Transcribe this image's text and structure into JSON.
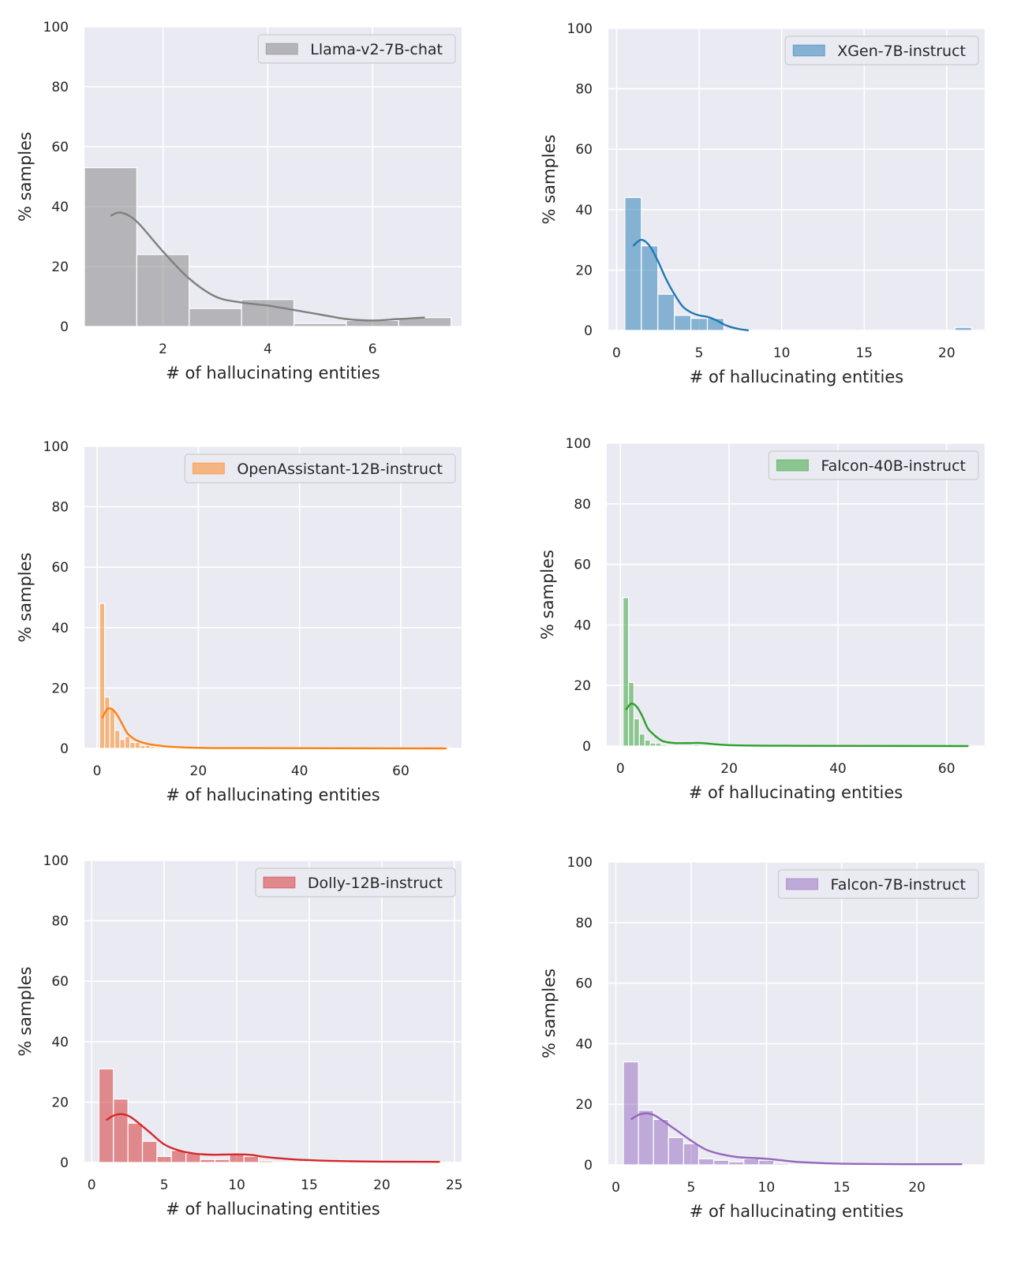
{
  "style": {
    "panel_bg": "#EAEAF2",
    "grid_color": "#FFFFFF",
    "text_color": "#262626"
  },
  "chart_data": [
    {
      "type": "bar",
      "subtype": "histogram_with_kde",
      "legend": "Llama-v2-7B-chat",
      "legend_position": "top-right",
      "color": "#7F7F7F",
      "xlabel": "# of hallucinating entities",
      "ylabel": "% samples",
      "xlim": [
        0.5,
        7.7
      ],
      "ylim": [
        0,
        100
      ],
      "xticks": [
        2,
        4,
        6
      ],
      "yticks": [
        0,
        20,
        40,
        60,
        80,
        100
      ],
      "grid": true,
      "bins": [
        {
          "x0": 0.5,
          "x1": 1.5,
          "value": 53
        },
        {
          "x0": 1.5,
          "x1": 2.5,
          "value": 24
        },
        {
          "x0": 2.5,
          "x1": 3.5,
          "value": 6
        },
        {
          "x0": 3.5,
          "x1": 4.5,
          "value": 9
        },
        {
          "x0": 4.5,
          "x1": 5.5,
          "value": 1
        },
        {
          "x0": 5.5,
          "x1": 6.5,
          "value": 2
        },
        {
          "x0": 6.5,
          "x1": 7.5,
          "value": 3
        }
      ],
      "kde": [
        [
          1,
          37
        ],
        [
          1.2,
          38
        ],
        [
          1.5,
          35
        ],
        [
          2,
          25
        ],
        [
          2.5,
          16
        ],
        [
          3,
          10
        ],
        [
          3.5,
          8
        ],
        [
          4,
          7
        ],
        [
          4.5,
          5.5
        ],
        [
          5,
          4
        ],
        [
          5.5,
          2.5
        ],
        [
          6,
          2
        ],
        [
          6.5,
          2.5
        ],
        [
          7,
          3
        ]
      ]
    },
    {
      "type": "bar",
      "subtype": "histogram_with_kde",
      "legend": "XGen-7B-instruct",
      "legend_position": "top-right",
      "color": "#1F77B4",
      "xlabel": "# of hallucinating entities",
      "ylabel": "% samples",
      "xlim": [
        -0.5,
        22.3
      ],
      "ylim": [
        0,
        100
      ],
      "xticks": [
        0,
        5,
        10,
        15,
        20
      ],
      "yticks": [
        0,
        20,
        40,
        60,
        80,
        100
      ],
      "grid": true,
      "bins": [
        {
          "x0": 0.5,
          "x1": 1.5,
          "value": 44
        },
        {
          "x0": 1.5,
          "x1": 2.5,
          "value": 28
        },
        {
          "x0": 2.5,
          "x1": 3.5,
          "value": 12
        },
        {
          "x0": 3.5,
          "x1": 4.5,
          "value": 5
        },
        {
          "x0": 4.5,
          "x1": 5.5,
          "value": 4
        },
        {
          "x0": 5.5,
          "x1": 6.5,
          "value": 4
        },
        {
          "x0": 20.5,
          "x1": 21.5,
          "value": 1
        }
      ],
      "kde": [
        [
          1,
          28
        ],
        [
          1.5,
          30
        ],
        [
          2,
          28
        ],
        [
          2.5,
          23
        ],
        [
          3,
          17
        ],
        [
          3.5,
          12
        ],
        [
          4,
          8
        ],
        [
          4.5,
          6
        ],
        [
          5,
          5
        ],
        [
          5.5,
          4.5
        ],
        [
          6,
          3.5
        ],
        [
          6.5,
          2
        ],
        [
          7,
          1
        ],
        [
          7.5,
          0.4
        ],
        [
          8,
          0
        ]
      ]
    },
    {
      "type": "bar",
      "subtype": "histogram_with_kde",
      "legend": "OpenAssistant-12B-instruct",
      "legend_position": "top-right",
      "color": "#FF7F0E",
      "xlabel": "# of hallucinating entities",
      "ylabel": "% samples",
      "xlim": [
        -2.5,
        72
      ],
      "ylim": [
        0,
        100
      ],
      "xticks": [
        0,
        20,
        40,
        60
      ],
      "yticks": [
        0,
        20,
        40,
        60,
        80,
        100
      ],
      "grid": true,
      "bins": [
        {
          "x0": 0.5,
          "x1": 1.5,
          "value": 48
        },
        {
          "x0": 1.5,
          "x1": 2.5,
          "value": 17
        },
        {
          "x0": 2.5,
          "x1": 3.5,
          "value": 13
        },
        {
          "x0": 3.5,
          "x1": 4.5,
          "value": 6
        },
        {
          "x0": 4.5,
          "x1": 5.5,
          "value": 3
        },
        {
          "x0": 5.5,
          "x1": 6.5,
          "value": 4
        },
        {
          "x0": 6.5,
          "x1": 7.5,
          "value": 2
        },
        {
          "x0": 7.5,
          "x1": 8.5,
          "value": 2
        },
        {
          "x0": 8.5,
          "x1": 9.5,
          "value": 1
        },
        {
          "x0": 9.5,
          "x1": 10.5,
          "value": 1
        },
        {
          "x0": 10.5,
          "x1": 11.5,
          "value": 0.6
        },
        {
          "x0": 11.5,
          "x1": 12.5,
          "value": 0.5
        },
        {
          "x0": 68.5,
          "x1": 69.5,
          "value": 0.5
        }
      ],
      "kde": [
        [
          1,
          10
        ],
        [
          2,
          13
        ],
        [
          3,
          13
        ],
        [
          4,
          11
        ],
        [
          5,
          8
        ],
        [
          6,
          5
        ],
        [
          7,
          3.5
        ],
        [
          8,
          2.5
        ],
        [
          10,
          1.5
        ],
        [
          12,
          1
        ],
        [
          15,
          0.5
        ],
        [
          20,
          0.2
        ],
        [
          30,
          0.1
        ],
        [
          69,
          0
        ]
      ]
    },
    {
      "type": "bar",
      "subtype": "histogram_with_kde",
      "legend": "Falcon-40B-instruct",
      "legend_position": "top-right",
      "color": "#2CA02C",
      "xlabel": "# of hallucinating entities",
      "ylabel": "% samples",
      "xlim": [
        -2.5,
        67
      ],
      "ylim": [
        0,
        100
      ],
      "xticks": [
        0,
        20,
        40,
        60
      ],
      "yticks": [
        0,
        20,
        40,
        60,
        80,
        100
      ],
      "grid": true,
      "bins": [
        {
          "x0": 0.5,
          "x1": 1.5,
          "value": 49
        },
        {
          "x0": 1.5,
          "x1": 2.5,
          "value": 21
        },
        {
          "x0": 2.5,
          "x1": 3.5,
          "value": 9
        },
        {
          "x0": 3.5,
          "x1": 4.5,
          "value": 4
        },
        {
          "x0": 4.5,
          "x1": 5.5,
          "value": 2
        },
        {
          "x0": 5.5,
          "x1": 6.5,
          "value": 1
        },
        {
          "x0": 6.5,
          "x1": 7.5,
          "value": 1
        },
        {
          "x0": 7.5,
          "x1": 8.5,
          "value": 0.5
        },
        {
          "x0": 13.5,
          "x1": 14.5,
          "value": 0.5
        },
        {
          "x0": 63.5,
          "x1": 64.5,
          "value": 0.5
        }
      ],
      "kde": [
        [
          1,
          12
        ],
        [
          2,
          14
        ],
        [
          3,
          13
        ],
        [
          4,
          10
        ],
        [
          5,
          6
        ],
        [
          6,
          4
        ],
        [
          7,
          2.5
        ],
        [
          8,
          1.5
        ],
        [
          10,
          1
        ],
        [
          13,
          1
        ],
        [
          15,
          1
        ],
        [
          20,
          0.3
        ],
        [
          30,
          0.1
        ],
        [
          64,
          0
        ]
      ]
    },
    {
      "type": "bar",
      "subtype": "histogram_with_kde",
      "legend": "Dolly-12B-instruct",
      "legend_position": "top-right",
      "color": "#D62728",
      "xlabel": "# of hallucinating entities",
      "ylabel": "% samples",
      "xlim": [
        -0.5,
        25.5
      ],
      "ylim": [
        0,
        100
      ],
      "xticks": [
        0,
        5,
        10,
        15,
        20,
        25
      ],
      "yticks": [
        0,
        20,
        40,
        60,
        80,
        100
      ],
      "grid": true,
      "bins": [
        {
          "x0": 0.5,
          "x1": 1.5,
          "value": 31
        },
        {
          "x0": 1.5,
          "x1": 2.5,
          "value": 21
        },
        {
          "x0": 2.5,
          "x1": 3.5,
          "value": 13
        },
        {
          "x0": 3.5,
          "x1": 4.5,
          "value": 7
        },
        {
          "x0": 4.5,
          "x1": 5.5,
          "value": 2
        },
        {
          "x0": 5.5,
          "x1": 6.5,
          "value": 4
        },
        {
          "x0": 6.5,
          "x1": 7.5,
          "value": 3
        },
        {
          "x0": 7.5,
          "x1": 8.5,
          "value": 1
        },
        {
          "x0": 8.5,
          "x1": 9.5,
          "value": 1
        },
        {
          "x0": 9.5,
          "x1": 10.5,
          "value": 3
        },
        {
          "x0": 10.5,
          "x1": 11.5,
          "value": 2
        },
        {
          "x0": 11.5,
          "x1": 12.5,
          "value": 0.5
        }
      ],
      "kde": [
        [
          1,
          14
        ],
        [
          1.5,
          15.5
        ],
        [
          2,
          16
        ],
        [
          2.5,
          15.5
        ],
        [
          3,
          14
        ],
        [
          4,
          10
        ],
        [
          5,
          6
        ],
        [
          6,
          4
        ],
        [
          7,
          3
        ],
        [
          8,
          2.6
        ],
        [
          9,
          2.6
        ],
        [
          10,
          2.7
        ],
        [
          11,
          2.5
        ],
        [
          12,
          1.8
        ],
        [
          14,
          1
        ],
        [
          16,
          0.6
        ],
        [
          18,
          0.4
        ],
        [
          20,
          0.3
        ],
        [
          24,
          0.2
        ]
      ]
    },
    {
      "type": "bar",
      "subtype": "histogram_with_kde",
      "legend": "Falcon-7B-instruct",
      "legend_position": "top-right",
      "color": "#9467BD",
      "xlabel": "# of hallucinating entities",
      "ylabel": "% samples",
      "xlim": [
        -0.5,
        24.5
      ],
      "ylim": [
        0,
        100
      ],
      "xticks": [
        0,
        5,
        10,
        15,
        20
      ],
      "yticks": [
        0,
        20,
        40,
        60,
        80,
        100
      ],
      "grid": true,
      "bins": [
        {
          "x0": 0.5,
          "x1": 1.5,
          "value": 34
        },
        {
          "x0": 1.5,
          "x1": 2.5,
          "value": 18
        },
        {
          "x0": 2.5,
          "x1": 3.5,
          "value": 15
        },
        {
          "x0": 3.5,
          "x1": 4.5,
          "value": 9
        },
        {
          "x0": 4.5,
          "x1": 5.5,
          "value": 7
        },
        {
          "x0": 5.5,
          "x1": 6.5,
          "value": 2
        },
        {
          "x0": 6.5,
          "x1": 7.5,
          "value": 1.5
        },
        {
          "x0": 7.5,
          "x1": 8.5,
          "value": 1
        },
        {
          "x0": 8.5,
          "x1": 9.5,
          "value": 2
        },
        {
          "x0": 9.5,
          "x1": 10.5,
          "value": 1.5
        },
        {
          "x0": 10.5,
          "x1": 11.5,
          "value": 0.5
        }
      ],
      "kde": [
        [
          1,
          15
        ],
        [
          1.5,
          16.5
        ],
        [
          2,
          17
        ],
        [
          2.5,
          16.5
        ],
        [
          3,
          15
        ],
        [
          4,
          11.5
        ],
        [
          5,
          8
        ],
        [
          6,
          5
        ],
        [
          7,
          3.5
        ],
        [
          8,
          2.6
        ],
        [
          9,
          2.3
        ],
        [
          10,
          2
        ],
        [
          11,
          1.5
        ],
        [
          12,
          1
        ],
        [
          14,
          0.5
        ],
        [
          16,
          0.3
        ],
        [
          20,
          0.2
        ],
        [
          23,
          0.2
        ]
      ]
    }
  ]
}
